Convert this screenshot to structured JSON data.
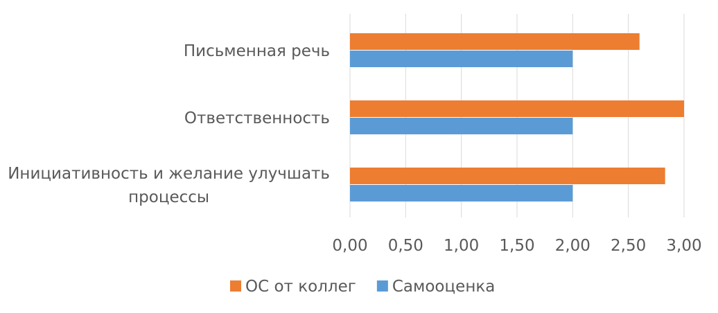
{
  "chart_data": {
    "type": "bar",
    "orientation": "horizontal",
    "categories": [
      [
        "Письменная речь"
      ],
      [
        "Ответственность"
      ],
      [
        "Инициативность и желание улучшать",
        "процессы"
      ]
    ],
    "series": [
      {
        "name": "ОС от коллег",
        "color": "#ED7D31",
        "values": [
          2.6,
          3.0,
          2.83
        ]
      },
      {
        "name": "Самооценка",
        "color": "#5B9BD5",
        "values": [
          2.0,
          2.0,
          2.0
        ]
      }
    ],
    "x_ticks": [
      "0,00",
      "0,50",
      "1,00",
      "1,50",
      "2,00",
      "2,50",
      "3,00"
    ],
    "xlim": [
      0,
      3
    ],
    "grid": "vertical",
    "legend_position": "bottom"
  }
}
